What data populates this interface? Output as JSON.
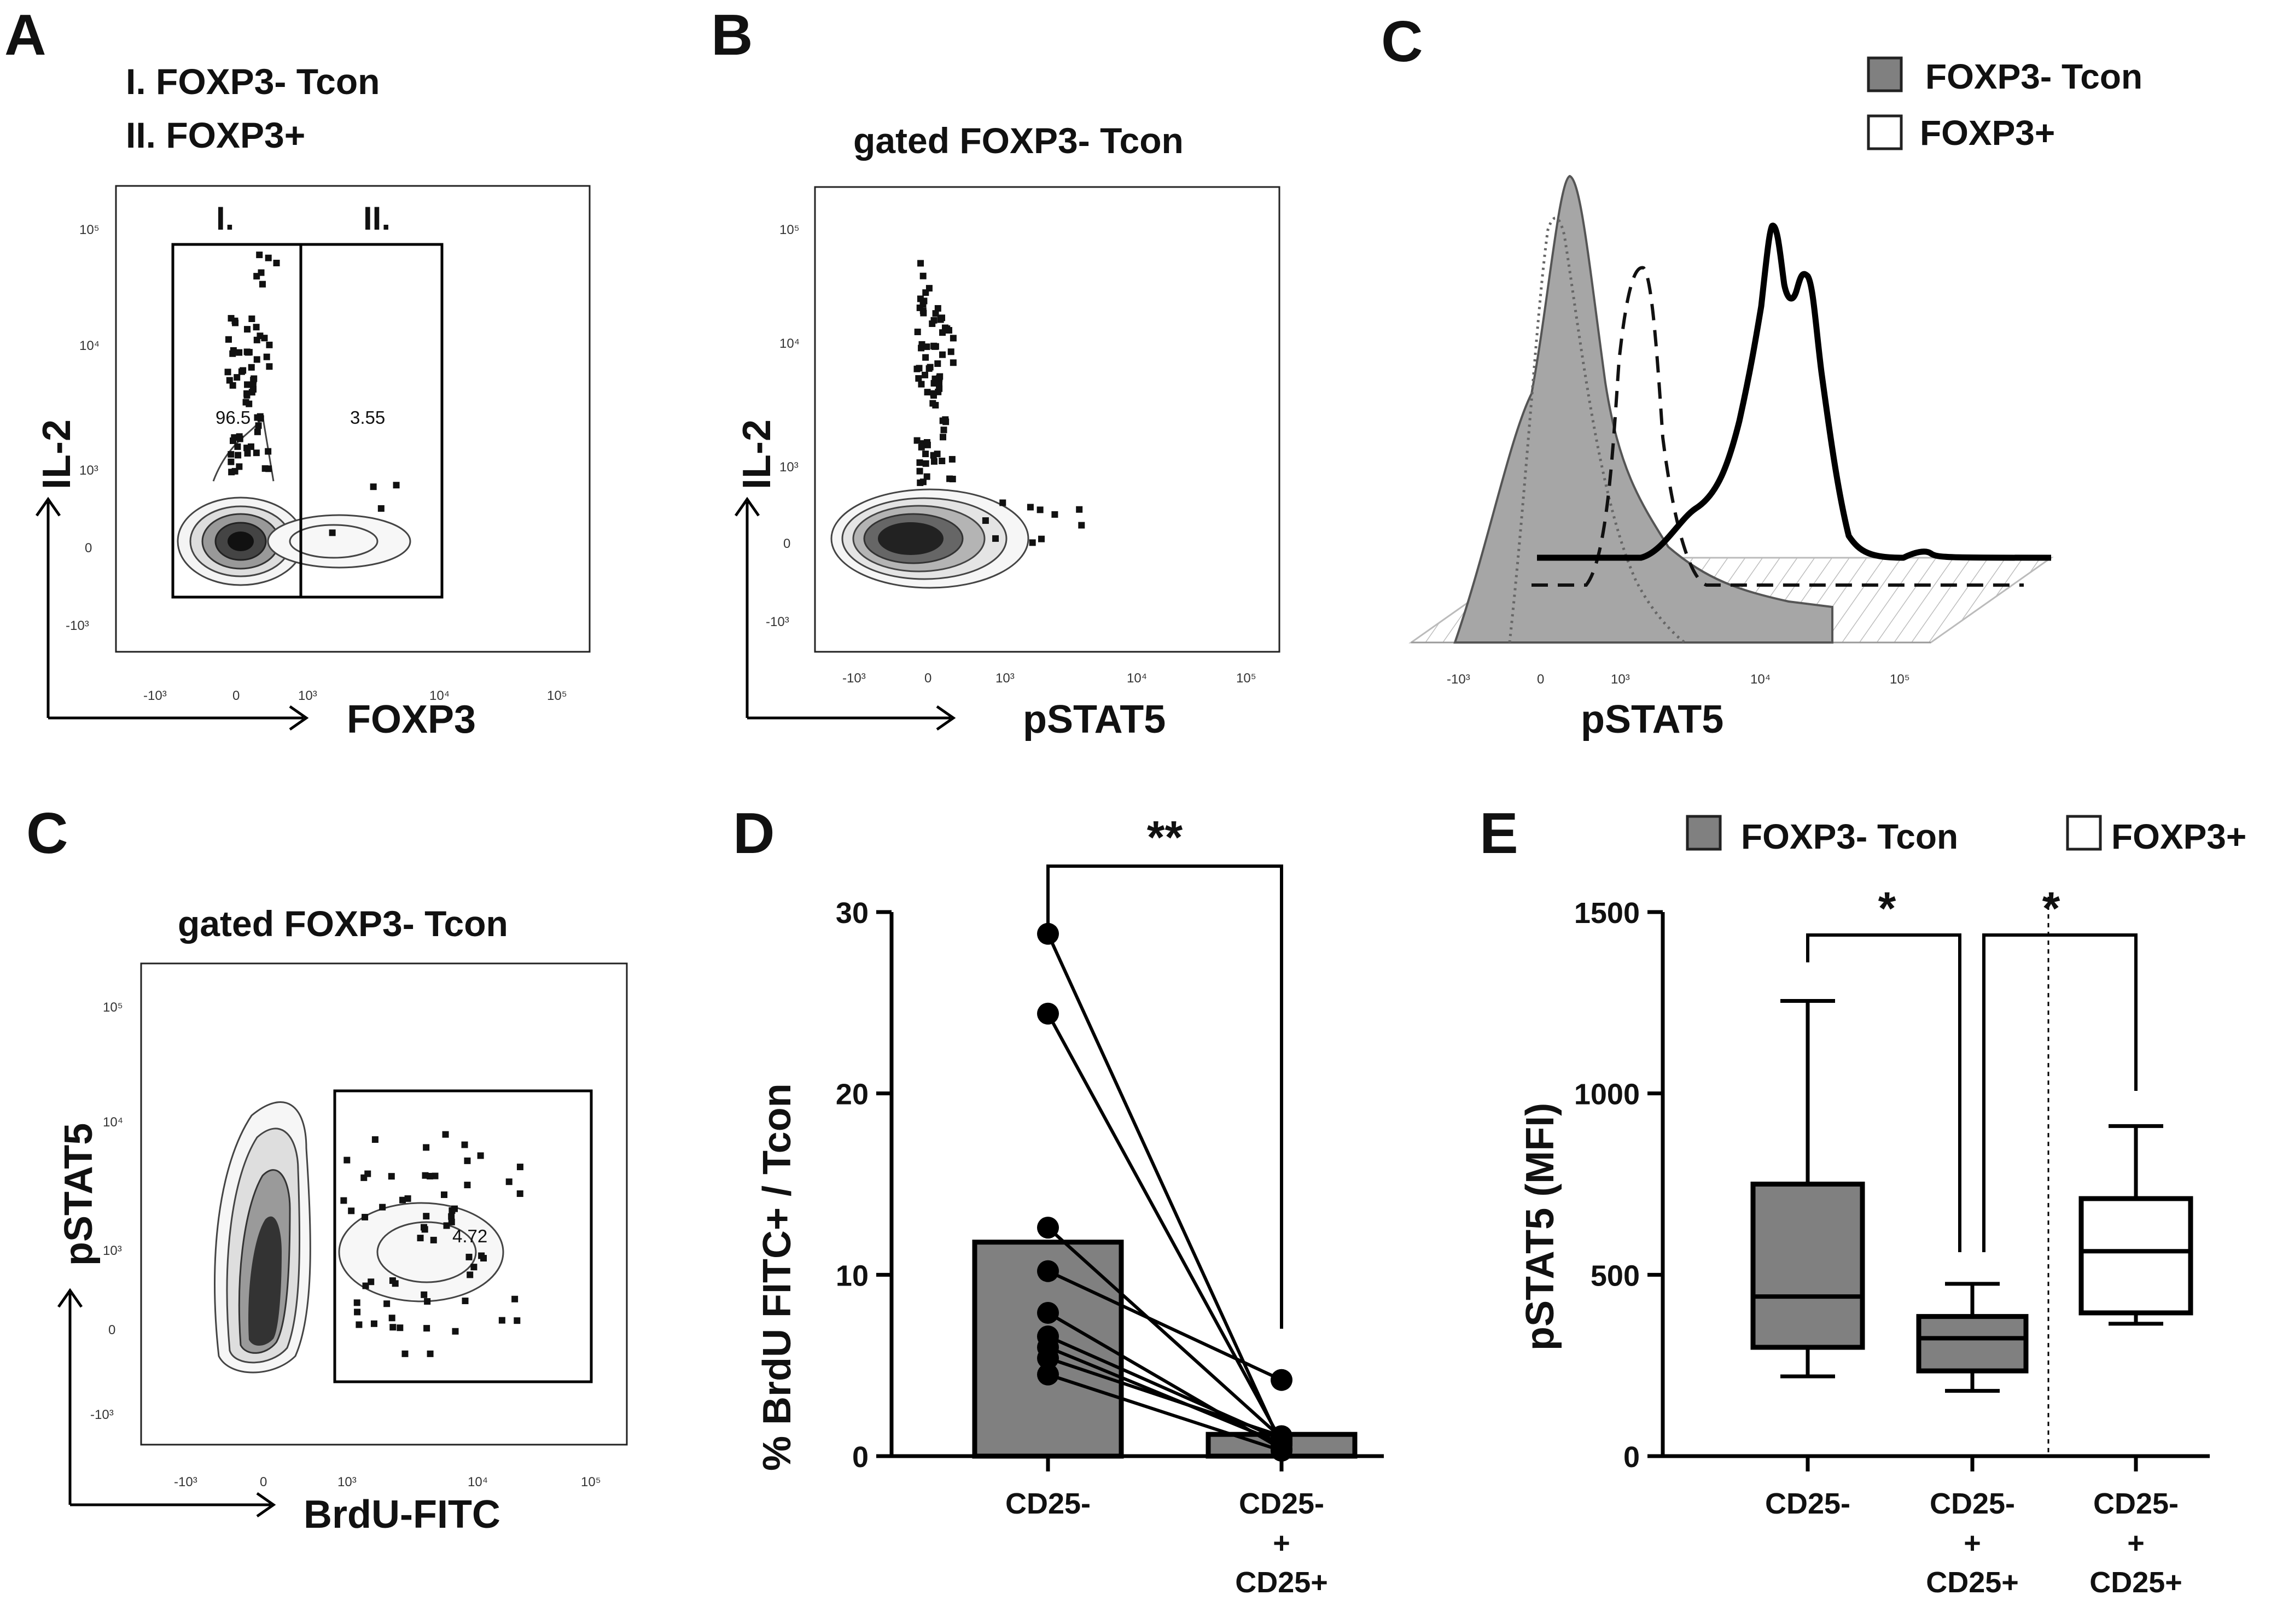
{
  "panels": {
    "A": {
      "label": "A",
      "legend": [
        "I. FOXP3- Tcon",
        "II. FOXP3+"
      ],
      "gates": [
        "I.",
        "II."
      ],
      "gate_values": [
        "96.5",
        "3.55"
      ],
      "xlabel": "FOXP3",
      "ylabel": "IL-2",
      "xticks": [
        "-10³",
        "0",
        "10³",
        "10⁴",
        "10⁵"
      ],
      "yticks": [
        "10⁵",
        "10⁴",
        "10³",
        "0",
        "-10³"
      ]
    },
    "B": {
      "label": "B",
      "title": "gated FOXP3- Tcon",
      "xlabel": "pSTAT5",
      "ylabel": "IL-2",
      "xticks": [
        "-10³",
        "0",
        "10³",
        "10⁴",
        "10⁵"
      ],
      "yticks": [
        "10⁵",
        "10⁴",
        "10³",
        "0",
        "-10³"
      ]
    },
    "C1": {
      "label": "C",
      "legend": [
        "FOXP3- Tcon",
        "FOXP3+"
      ],
      "xlabel": "pSTAT5",
      "xticks": [
        "-10³",
        "0",
        "10³",
        "10⁴",
        "10⁵"
      ]
    },
    "C2": {
      "label": "C",
      "title": "gated FOXP3- Tcon",
      "gate_value": "4.72",
      "xlabel": "BrdU-FITC",
      "ylabel": "pSTAT5",
      "xticks": [
        "-10³",
        "0",
        "10³",
        "10⁴",
        "10⁵"
      ],
      "yticks": [
        "10⁵",
        "10⁴",
        "10³",
        "0",
        "-10³"
      ]
    },
    "D": {
      "label": "D",
      "ylabel": "% BrdU FITC+ / Tcon",
      "significance": "**",
      "yticks": [
        "30",
        "20",
        "10",
        "0"
      ],
      "xticks": [
        [
          "CD25-"
        ],
        [
          "CD25-",
          "+",
          "CD25+"
        ]
      ]
    },
    "E": {
      "label": "E",
      "legend": [
        "FOXP3- Tcon",
        "FOXP3+"
      ],
      "ylabel": "pSTAT5 (MFI)",
      "significance": [
        "*",
        "*"
      ],
      "yticks": [
        "1500",
        "1000",
        "500",
        "0"
      ],
      "xticks": [
        [
          "CD25-"
        ],
        [
          "CD25-",
          "+",
          "CD25+"
        ],
        [
          "CD25-",
          "+",
          "CD25+"
        ]
      ]
    }
  },
  "colors": {
    "filled": "#808080",
    "open": "#ffffff",
    "line": "#000000"
  },
  "chart_data": [
    {
      "panel": "D",
      "type": "bar",
      "categories": [
        "CD25-",
        "CD25- + CD25+"
      ],
      "values": [
        11.8,
        1.2
      ],
      "ylim": [
        0,
        30
      ],
      "ylabel": "% BrdU FITC+ / Tcon",
      "paired_points": [
        [
          28.8,
          0.6
        ],
        [
          24.4,
          0.8
        ],
        [
          12.6,
          1.0
        ],
        [
          10.2,
          4.2
        ],
        [
          7.9,
          0.4
        ],
        [
          6.6,
          0.9
        ],
        [
          6.0,
          0.7
        ],
        [
          5.4,
          1.1
        ],
        [
          4.5,
          0.3
        ]
      ],
      "significance": "**"
    },
    {
      "panel": "E",
      "type": "box",
      "categories": [
        "CD25-",
        "CD25- + CD25+",
        "CD25- + CD25+"
      ],
      "series": [
        {
          "name": "FOXP3- Tcon",
          "boxes": [
            {
              "min": 220,
              "q1": 300,
              "median": 440,
              "q3": 750,
              "max": 1255
            },
            {
              "min": 180,
              "q1": 235,
              "median": 325,
              "q3": 385,
              "max": 475
            }
          ]
        },
        {
          "name": "FOXP3+",
          "boxes": [
            {
              "min": 365,
              "q1": 395,
              "median": 565,
              "q3": 710,
              "max": 910
            }
          ]
        }
      ],
      "ylim": [
        0,
        1500
      ],
      "ylabel": "pSTAT5 (MFI)",
      "significance": [
        "*",
        "*"
      ]
    }
  ]
}
